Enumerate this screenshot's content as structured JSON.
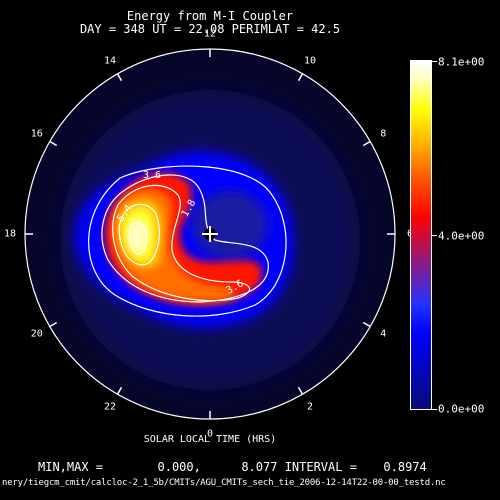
{
  "title": "Energy from M-I Coupler",
  "subtitle": "DAY = 348   UT = 22.08   PERIMLAT =  42.5",
  "hour_labels": [
    "12",
    "10",
    "8",
    "6",
    "4",
    "2",
    "0",
    "22",
    "20",
    "18",
    "16",
    "14"
  ],
  "xlabel": "SOLAR LOCAL TIME (HRS)",
  "stats": {
    "min_max_label": "MIN,MAX =",
    "min": "0.000,",
    "max": "8.077",
    "interval_label": "INTERVAL =",
    "interval": "0.8974"
  },
  "file_path": "nery/tiegcm_cmit/calcloc-2_1_5b/CMITs/AGU_CMITs_sech_tie_2006-12-14T22-00-00_testd.nc",
  "colorbar": {
    "max_label": "8.1e+00",
    "mid_label": "4.0e+00",
    "min_label": "0.0e+00",
    "colors": [
      "#00008a",
      "#0000ff",
      "#ff0000",
      "#ffff00",
      "#ffffff"
    ]
  },
  "contour_labels": [
    "3.6",
    "1.8",
    "5.4",
    "3.6"
  ],
  "perimeter_latitude": 42.5
}
